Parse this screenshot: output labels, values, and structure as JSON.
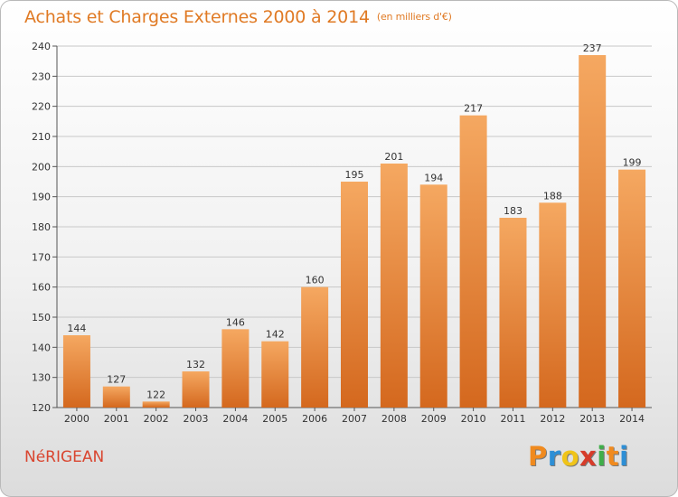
{
  "title": "Achats et Charges Externes 2000 à 2014",
  "unit": "(en milliers d'€)",
  "commune": "NéRIGEAN",
  "logo": {
    "letters": [
      "P",
      "r",
      "o",
      "x",
      "i",
      "t",
      "i"
    ],
    "colors": [
      "#f08a1e",
      "#2d8fd6",
      "#f0c419",
      "#d63c2a",
      "#3fae49",
      "#f08a1e",
      "#2d8fd6"
    ]
  },
  "colors": {
    "bar_top": "#f5a861",
    "bar_bottom": "#d4681e",
    "title": "#e07a24",
    "commune": "#d9452f"
  },
  "chart_data": {
    "type": "bar",
    "title": "Achats et Charges Externes 2000 à 2014",
    "subtitle": "(en milliers d'€)",
    "categories": [
      "2000",
      "2001",
      "2002",
      "2003",
      "2004",
      "2005",
      "2006",
      "2007",
      "2008",
      "2009",
      "2010",
      "2011",
      "2012",
      "2013",
      "2014"
    ],
    "values": [
      144,
      127,
      122,
      132,
      146,
      142,
      160,
      195,
      201,
      194,
      217,
      183,
      188,
      237,
      199
    ],
    "ylim": [
      120,
      240
    ],
    "yticks": [
      120,
      130,
      140,
      150,
      160,
      170,
      180,
      190,
      200,
      210,
      220,
      230,
      240
    ],
    "grid": true,
    "legend": "none"
  }
}
